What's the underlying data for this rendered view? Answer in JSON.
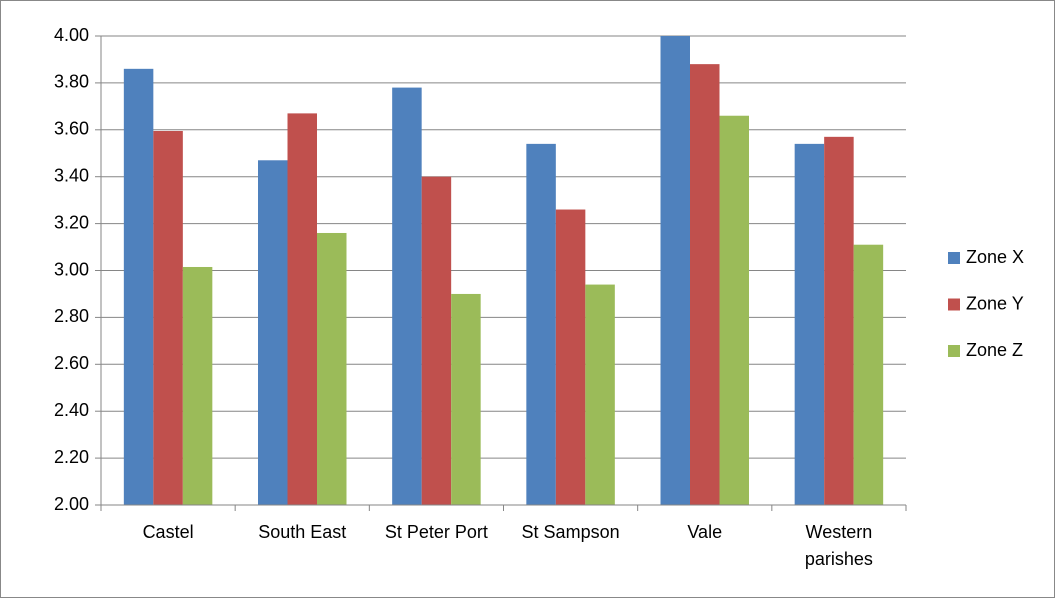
{
  "chart_data": {
    "type": "bar",
    "categories": [
      "Castel",
      "South East",
      "St Peter Port",
      "St Sampson",
      "Vale",
      "Western parishes"
    ],
    "series": [
      {
        "name": "Zone X",
        "color": "#4f81bd",
        "values": [
          3.86,
          3.47,
          3.78,
          3.54,
          4.0,
          3.54
        ]
      },
      {
        "name": "Zone Y",
        "color": "#c0504d",
        "values": [
          3.595,
          3.67,
          3.4,
          3.26,
          3.88,
          3.57
        ]
      },
      {
        "name": "Zone Z",
        "color": "#9bbb59",
        "values": [
          3.015,
          3.16,
          2.9,
          2.94,
          3.66,
          3.11
        ]
      }
    ],
    "ylim": [
      2,
      4
    ],
    "yticks": [
      {
        "value": 2,
        "label": "2.00"
      },
      {
        "value": 2.2,
        "label": "2.20"
      },
      {
        "value": 2.4,
        "label": "2.40"
      },
      {
        "value": 2.6,
        "label": "2.60"
      },
      {
        "value": 2.8,
        "label": "2.80"
      },
      {
        "value": 3,
        "label": "3.00"
      },
      {
        "value": 3.2,
        "label": "3.20"
      },
      {
        "value": 3.4,
        "label": "3.40"
      },
      {
        "value": 3.6,
        "label": "3.60"
      },
      {
        "value": 3.8,
        "label": "3.80"
      },
      {
        "value": 4,
        "label": "4.00"
      }
    ],
    "grid": true,
    "legend": "right"
  }
}
